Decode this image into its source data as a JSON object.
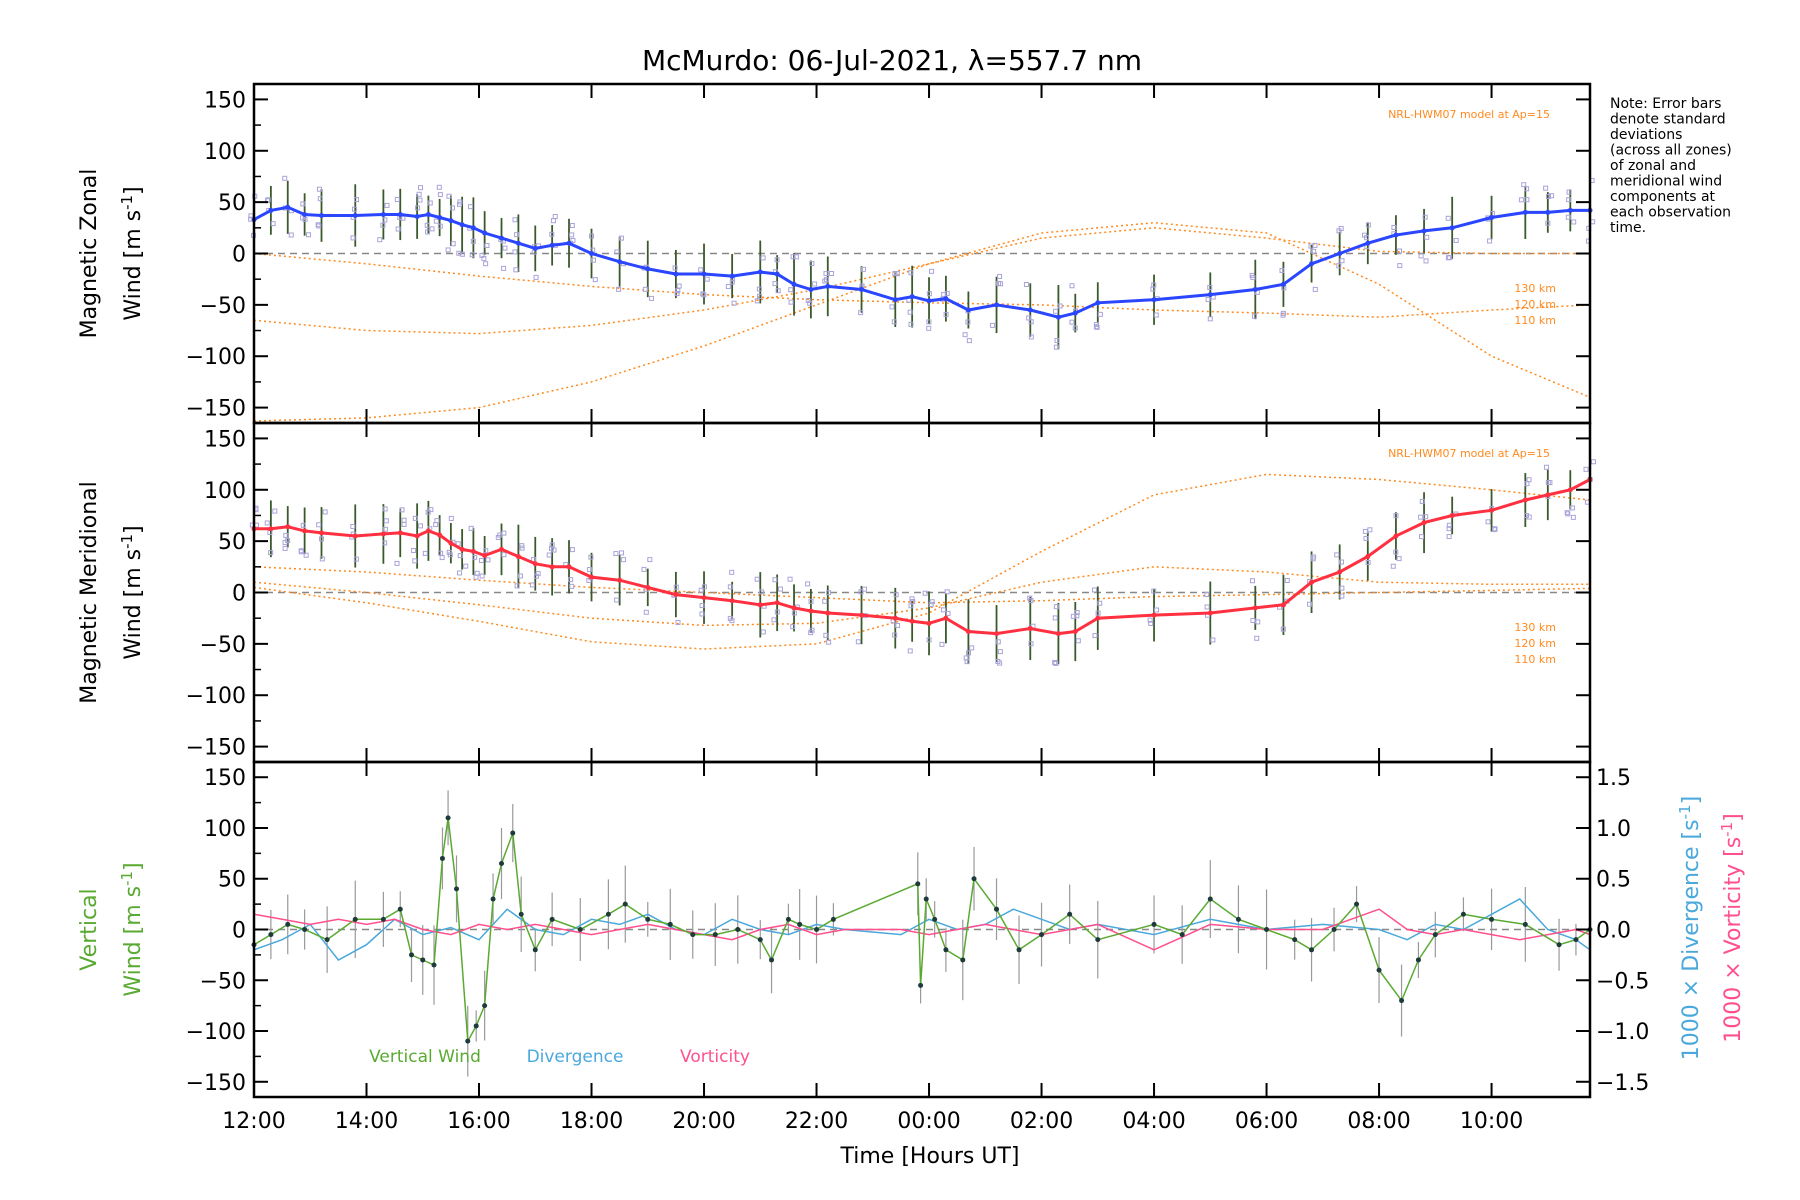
{
  "title": "McMurdo: 06-Jul-2021, λ=557.7 nm",
  "note_lines": [
    "Note: Error bars",
    "denote standard",
    "deviations",
    "(across all zones)",
    "of zonal and",
    "meridional wind",
    "components at",
    "each observation",
    "time."
  ],
  "x_axis": {
    "label": "Time [Hours UT]",
    "range": [
      12,
      35.75
    ],
    "ticks": [
      12,
      14,
      16,
      18,
      20,
      22,
      24,
      26,
      28,
      30,
      32,
      34
    ],
    "tick_labels": [
      "12:00",
      "14:00",
      "16:00",
      "18:00",
      "20:00",
      "22:00",
      "00:00",
      "02:00",
      "04:00",
      "06:00",
      "08:00",
      "10:00"
    ]
  },
  "colors": {
    "zonal": "#2a46ff",
    "meridional": "#ff3040",
    "model": "#ff8a1f",
    "zone_points": "#a9a3d9",
    "vertical": "#5aaa32",
    "divergence": "#4aa8dc",
    "vorticity": "#ff4f8e",
    "zero_line": "#888888"
  },
  "chart_data": [
    {
      "id": "zonal",
      "type": "line",
      "ylabel_line1": "Magnetic Zonal",
      "ylabel_line2": "Wind [m s",
      "ylabel_sup": "-1",
      "ylabel_end": "]",
      "ylim": [
        -165,
        165
      ],
      "yticks": [
        150,
        100,
        50,
        0,
        -50,
        -100,
        -150
      ],
      "ytick_labels": [
        "150",
        "100",
        "50",
        "0",
        "−50",
        "−100",
        "−150"
      ],
      "model_label": "NRL-HWM07 model at Ap=15",
      "model_series": [
        {
          "name": "130 km",
          "x": [
            12,
            14,
            16,
            18,
            20,
            22,
            24,
            26,
            28,
            30,
            32,
            34,
            35.75
          ],
          "y": [
            -163,
            -160,
            -150,
            -125,
            -90,
            -50,
            -10,
            20,
            30,
            20,
            -30,
            -100,
            -140
          ]
        },
        {
          "name": "120 km",
          "x": [
            12,
            14,
            16,
            18,
            20,
            22,
            24,
            26,
            28,
            30,
            32,
            34,
            35.75
          ],
          "y": [
            -65,
            -75,
            -78,
            -70,
            -55,
            -35,
            -10,
            15,
            25,
            15,
            2,
            0,
            0
          ]
        },
        {
          "name": "110 km",
          "x": [
            12,
            14,
            16,
            18,
            20,
            22,
            24,
            26,
            28,
            30,
            32,
            34,
            35.75
          ],
          "y": [
            0,
            -10,
            -22,
            -32,
            -40,
            -45,
            -48,
            -50,
            -55,
            -58,
            -62,
            -55,
            -50
          ]
        }
      ],
      "series": [
        {
          "name": "Magnetic Zonal Wind",
          "x": [
            12,
            12.3,
            12.6,
            12.9,
            13.2,
            13.8,
            14.3,
            14.6,
            14.9,
            15.1,
            15.3,
            15.5,
            15.7,
            15.9,
            16.1,
            16.4,
            16.7,
            17.0,
            17.3,
            17.6,
            18.0,
            18.5,
            19.0,
            19.5,
            20.0,
            20.5,
            21.0,
            21.3,
            21.6,
            21.9,
            22.2,
            22.8,
            23.4,
            23.7,
            24.0,
            24.3,
            24.7,
            25.2,
            25.8,
            26.3,
            26.6,
            27.0,
            28.0,
            29.0,
            29.8,
            30.3,
            30.8,
            31.3,
            31.8,
            32.3,
            32.8,
            33.3,
            34.0,
            34.6,
            35.0,
            35.4,
            35.75
          ],
          "y": [
            33,
            42,
            45,
            38,
            37,
            37,
            38,
            38,
            36,
            38,
            35,
            32,
            28,
            25,
            20,
            15,
            10,
            5,
            8,
            10,
            0,
            -8,
            -15,
            -20,
            -20,
            -22,
            -18,
            -20,
            -30,
            -35,
            -32,
            -35,
            -45,
            -42,
            -46,
            -44,
            -55,
            -50,
            -55,
            -62,
            -58,
            -48,
            -45,
            -40,
            -35,
            -30,
            -10,
            0,
            10,
            18,
            22,
            25,
            35,
            40,
            40,
            42,
            42
          ]
        }
      ]
    },
    {
      "id": "meridional",
      "type": "line",
      "ylabel_line1": "Magnetic Meridional",
      "ylabel_line2": "Wind [m s",
      "ylabel_sup": "-1",
      "ylabel_end": "]",
      "ylim": [
        -165,
        165
      ],
      "yticks": [
        150,
        100,
        50,
        0,
        -50,
        -100,
        -150
      ],
      "ytick_labels": [
        "150",
        "100",
        "50",
        "0",
        "−50",
        "−100",
        "−150"
      ],
      "model_label": "NRL-HWM07 model at Ap=15",
      "model_series": [
        {
          "name": "130 km",
          "x": [
            12,
            14,
            16,
            18,
            20,
            22,
            24,
            26,
            28,
            30,
            32,
            34,
            35.75
          ],
          "y": [
            5,
            -10,
            -28,
            -48,
            -55,
            -50,
            -20,
            40,
            95,
            115,
            110,
            100,
            90
          ]
        },
        {
          "name": "120 km",
          "x": [
            12,
            14,
            16,
            18,
            20,
            22,
            24,
            26,
            28,
            30,
            32,
            34,
            35.75
          ],
          "y": [
            10,
            0,
            -12,
            -25,
            -32,
            -30,
            -15,
            10,
            25,
            20,
            10,
            8,
            8
          ]
        },
        {
          "name": "110 km",
          "x": [
            12,
            14,
            16,
            18,
            20,
            22,
            24,
            26,
            28,
            30,
            32,
            34,
            35.75
          ],
          "y": [
            25,
            20,
            12,
            5,
            0,
            -5,
            -10,
            -8,
            -4,
            -2,
            0,
            2,
            4
          ]
        }
      ],
      "series": [
        {
          "name": "Magnetic Meridional Wind",
          "x": [
            12,
            12.3,
            12.6,
            12.9,
            13.2,
            13.8,
            14.3,
            14.6,
            14.9,
            15.1,
            15.3,
            15.5,
            15.7,
            15.9,
            16.1,
            16.4,
            16.7,
            17.0,
            17.3,
            17.6,
            18.0,
            18.5,
            19.0,
            19.5,
            20.0,
            20.5,
            21.0,
            21.3,
            21.6,
            21.9,
            22.2,
            22.8,
            23.4,
            23.7,
            24.0,
            24.3,
            24.7,
            25.2,
            25.8,
            26.3,
            26.6,
            27.0,
            28.0,
            29.0,
            29.8,
            30.3,
            30.8,
            31.3,
            31.8,
            32.3,
            32.8,
            33.3,
            34.0,
            34.6,
            35.0,
            35.4,
            35.75
          ],
          "y": [
            62,
            62,
            64,
            60,
            58,
            55,
            57,
            58,
            55,
            60,
            56,
            48,
            42,
            40,
            36,
            42,
            35,
            28,
            25,
            25,
            15,
            12,
            5,
            -2,
            -5,
            -8,
            -12,
            -10,
            -15,
            -18,
            -20,
            -22,
            -25,
            -28,
            -30,
            -25,
            -38,
            -40,
            -35,
            -40,
            -38,
            -25,
            -22,
            -20,
            -15,
            -12,
            10,
            20,
            35,
            55,
            68,
            75,
            80,
            90,
            95,
            100,
            110
          ]
        }
      ]
    },
    {
      "id": "vertical",
      "type": "line",
      "ylabel_line1": "Vertical",
      "ylabel_line2": "Wind [m s",
      "ylabel_sup": "-1",
      "ylabel_end": "]",
      "ylim": [
        -165,
        165
      ],
      "yticks": [
        150,
        100,
        50,
        0,
        -50,
        -100,
        -150
      ],
      "ytick_labels": [
        "150",
        "100",
        "50",
        "0",
        "−50",
        "−100",
        "−150"
      ],
      "y2lim": [
        -1.65,
        1.65
      ],
      "y2ticks": [
        1.5,
        1.0,
        0.5,
        0.0,
        -0.5,
        -1.0,
        -1.5
      ],
      "y2tick_labels": [
        "1.5",
        "1.0",
        "0.5",
        "0.0",
        "−0.5",
        "−1.0",
        "−1.5"
      ],
      "y2label_div": "1000 × Divergence [s",
      "y2label_vor": "1000 × Vorticity [s",
      "y2label_sup": "-1",
      "y2label_end": "]",
      "legend": [
        "Vertical Wind",
        "Divergence",
        "Vorticity"
      ],
      "series": [
        {
          "name": "Vertical Wind",
          "axis": "left",
          "x": [
            12.0,
            12.3,
            12.6,
            12.9,
            13.3,
            13.8,
            14.3,
            14.6,
            14.8,
            15.0,
            15.2,
            15.35,
            15.45,
            15.6,
            15.8,
            15.95,
            16.1,
            16.25,
            16.4,
            16.6,
            16.75,
            17.0,
            17.3,
            17.8,
            18.3,
            18.6,
            19.0,
            19.4,
            19.8,
            20.2,
            20.6,
            21.0,
            21.2,
            21.5,
            21.7,
            22.0,
            22.3,
            23.8,
            23.85,
            23.95,
            24.1,
            24.3,
            24.6,
            24.8,
            25.2,
            25.6,
            26.0,
            26.5,
            27.0,
            28.0,
            28.5,
            29.0,
            29.5,
            30.0,
            30.5,
            30.8,
            31.2,
            31.6,
            32.0,
            32.4,
            32.7,
            33.0,
            33.5,
            34.0,
            34.6,
            35.2,
            35.5,
            35.75
          ],
          "y": [
            -15,
            -5,
            5,
            0,
            -10,
            10,
            10,
            20,
            -25,
            -30,
            -35,
            70,
            110,
            40,
            -110,
            -95,
            -75,
            30,
            65,
            95,
            15,
            -20,
            10,
            0,
            15,
            25,
            10,
            5,
            -5,
            -5,
            0,
            -10,
            -30,
            10,
            5,
            0,
            10,
            45,
            -55,
            30,
            10,
            -20,
            -30,
            50,
            20,
            -20,
            -5,
            15,
            -10,
            5,
            -5,
            30,
            10,
            0,
            -10,
            -20,
            0,
            25,
            -40,
            -70,
            -30,
            -5,
            15,
            10,
            5,
            -15,
            -10,
            0
          ]
        },
        {
          "name": "Divergence",
          "axis": "right",
          "x": [
            12.0,
            12.5,
            13.0,
            13.5,
            14.0,
            14.5,
            15.0,
            15.5,
            16.0,
            16.5,
            17.0,
            17.5,
            18.0,
            18.5,
            19.0,
            19.5,
            20.0,
            20.5,
            21.0,
            21.5,
            22.0,
            22.5,
            23.5,
            24.0,
            24.5,
            25.0,
            25.5,
            26.0,
            26.5,
            27.0,
            28.0,
            29.0,
            30.0,
            31.0,
            32.0,
            32.5,
            33.0,
            33.5,
            34.0,
            34.5,
            35.0,
            35.5,
            35.75
          ],
          "y": [
            -0.2,
            -0.1,
            0.05,
            -0.3,
            -0.15,
            0.1,
            -0.05,
            0.02,
            -0.1,
            0.2,
            0.0,
            -0.05,
            0.1,
            0.05,
            0.15,
            0.0,
            -0.05,
            0.1,
            0.0,
            -0.05,
            0.05,
            0.0,
            -0.05,
            0.1,
            0.0,
            0.05,
            0.2,
            0.1,
            0.0,
            0.05,
            -0.05,
            0.1,
            0.0,
            0.05,
            0.0,
            -0.1,
            0.05,
            0.0,
            0.15,
            0.3,
            0.0,
            -0.1,
            -0.2
          ]
        },
        {
          "name": "Vorticity",
          "axis": "right",
          "x": [
            12.0,
            12.5,
            13.0,
            13.5,
            14.0,
            14.5,
            15.0,
            15.5,
            16.0,
            16.5,
            17.0,
            17.5,
            18.0,
            18.5,
            19.0,
            19.5,
            20.0,
            20.5,
            21.0,
            21.5,
            22.0,
            22.5,
            23.5,
            24.0,
            24.5,
            25.0,
            25.5,
            26.0,
            26.5,
            27.0,
            28.0,
            29.0,
            30.0,
            31.0,
            32.0,
            32.5,
            33.0,
            33.5,
            34.0,
            34.5,
            35.0,
            35.5,
            35.75
          ],
          "y": [
            0.15,
            0.1,
            0.05,
            0.1,
            0.05,
            0.1,
            0.0,
            -0.05,
            0.05,
            0.0,
            0.05,
            0.0,
            -0.05,
            0.0,
            0.05,
            0.0,
            -0.05,
            -0.1,
            0.0,
            0.05,
            -0.05,
            0.0,
            0.0,
            -0.05,
            0.0,
            0.05,
            0.0,
            -0.05,
            0.0,
            0.05,
            -0.2,
            0.05,
            0.0,
            0.0,
            0.2,
            0.0,
            -0.05,
            0.0,
            -0.05,
            -0.1,
            -0.05,
            0.0,
            -0.05
          ]
        }
      ]
    }
  ]
}
